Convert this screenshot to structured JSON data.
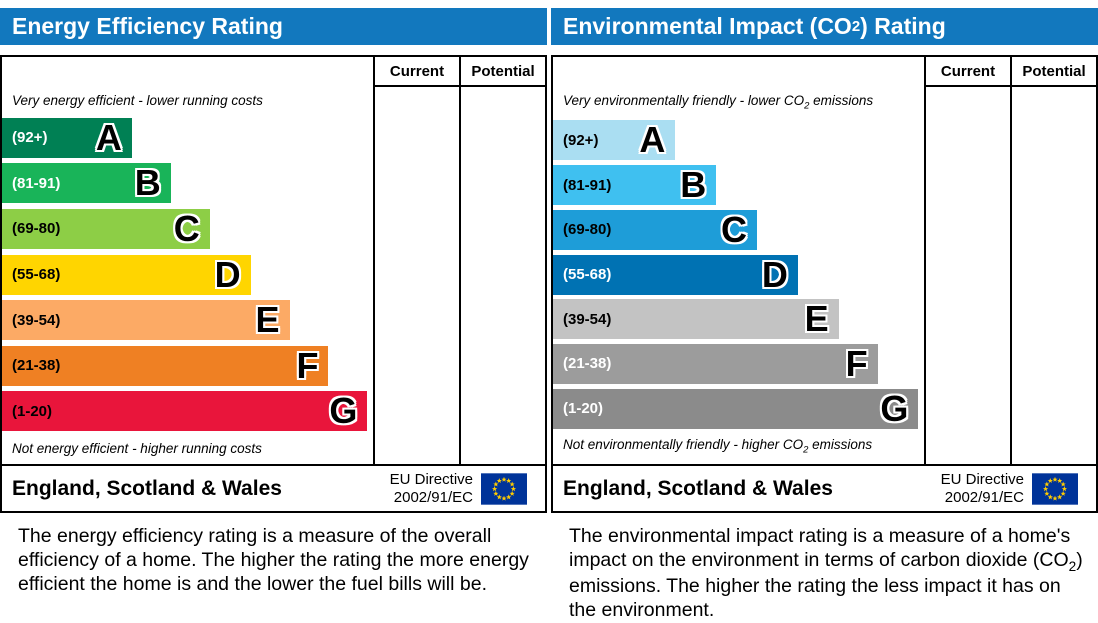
{
  "chart_data": [
    {
      "type": "bar",
      "title": "Energy Efficiency Rating",
      "categories": [
        "A (92+)",
        "B (81-91)",
        "C (69-80)",
        "D (55-68)",
        "E (39-54)",
        "F (21-38)",
        "G (1-20)"
      ],
      "values": [
        35,
        45.5,
        56,
        67,
        77.5,
        88,
        98.5
      ],
      "value_unit": "relative bar width %",
      "current": null,
      "potential": null,
      "top_label": "Very energy efficient - lower running costs",
      "bottom_label": "Not energy efficient - higher running costs",
      "legend_position": "none"
    },
    {
      "type": "bar",
      "title": "Environmental Impact (CO2) Rating",
      "categories": [
        "A (92+)",
        "B (81-91)",
        "C (69-80)",
        "D (55-68)",
        "E (39-54)",
        "F (21-38)",
        "G (1-20)"
      ],
      "values": [
        33,
        44,
        55,
        66,
        77,
        87.5,
        98.5
      ],
      "value_unit": "relative bar width %",
      "current": null,
      "potential": null,
      "top_label": "Very environmentally friendly - lower CO2 emissions",
      "bottom_label": "Not environmentally friendly - higher CO2 emissions",
      "legend_position": "none"
    }
  ],
  "left": {
    "title": "Energy Efficiency Rating",
    "current_label": "Current",
    "potential_label": "Potential",
    "top_note": "Very energy efficient - lower running costs",
    "bottom_note": "Not energy efficient - higher running costs",
    "bands": [
      {
        "range": "(92+)",
        "letter": "A",
        "color": "#008054",
        "width_pct": 35,
        "label_color": "#ffffff"
      },
      {
        "range": "(81-91)",
        "letter": "B",
        "color": "#19b459",
        "width_pct": 45.5,
        "label_color": "#ffffff"
      },
      {
        "range": "(69-80)",
        "letter": "C",
        "color": "#8dce46",
        "width_pct": 56,
        "label_color": "#000000"
      },
      {
        "range": "(55-68)",
        "letter": "D",
        "color": "#ffd500",
        "width_pct": 67,
        "label_color": "#000000"
      },
      {
        "range": "(39-54)",
        "letter": "E",
        "color": "#fcaa65",
        "width_pct": 77.5,
        "label_color": "#000000"
      },
      {
        "range": "(21-38)",
        "letter": "F",
        "color": "#ef8023",
        "width_pct": 88,
        "label_color": "#000000"
      },
      {
        "range": "(1-20)",
        "letter": "G",
        "color": "#e9153b",
        "width_pct": 98.5,
        "label_color": "#000000"
      }
    ],
    "footer": {
      "region": "England, Scotland & Wales",
      "directive_line1": "EU Directive",
      "directive_line2": "2002/91/EC"
    },
    "description": "The energy efficiency rating is a measure of the overall efficiency of a home. The higher the rating the more energy efficient the home is and the lower the fuel bills will be."
  },
  "right": {
    "title_pre": "Environmental Impact (CO",
    "title_sub": "2",
    "title_post": ") Rating",
    "current_label": "Current",
    "potential_label": "Potential",
    "top_note_pre": "Very environmentally friendly - lower CO",
    "top_note_sub": "2",
    "top_note_post": " emissions",
    "bottom_note_pre": "Not environmentally friendly - higher CO",
    "bottom_note_sub": "2",
    "bottom_note_post": " emissions",
    "bands": [
      {
        "range": "(92+)",
        "letter": "A",
        "color": "#aadef2",
        "width_pct": 33,
        "label_color": "#000000"
      },
      {
        "range": "(81-91)",
        "letter": "B",
        "color": "#3fc0f0",
        "width_pct": 44,
        "label_color": "#000000"
      },
      {
        "range": "(69-80)",
        "letter": "C",
        "color": "#1e9dd8",
        "width_pct": 55,
        "label_color": "#000000"
      },
      {
        "range": "(55-68)",
        "letter": "D",
        "color": "#0072b3",
        "width_pct": 66,
        "label_color": "#ffffff"
      },
      {
        "range": "(39-54)",
        "letter": "E",
        "color": "#c3c3c3",
        "width_pct": 77,
        "label_color": "#000000"
      },
      {
        "range": "(21-38)",
        "letter": "F",
        "color": "#9c9c9c",
        "width_pct": 87.5,
        "label_color": "#ffffff"
      },
      {
        "range": "(1-20)",
        "letter": "G",
        "color": "#8b8b8b",
        "width_pct": 98.5,
        "label_color": "#ffffff"
      }
    ],
    "footer": {
      "region": "England, Scotland & Wales",
      "directive_line1": "EU Directive",
      "directive_line2": "2002/91/EC"
    },
    "description_pre": "The environmental impact rating is a measure of a home's impact on the environment in terms of carbon dioxide (CO",
    "description_sub": "2",
    "description_post": ") emissions. The higher the rating the less impact it has on the environment."
  },
  "colors": {
    "header_blue": "#1278be",
    "border_black": "#000000",
    "eu_flag_blue": "#003399",
    "eu_star_yellow": "#ffcc00"
  }
}
